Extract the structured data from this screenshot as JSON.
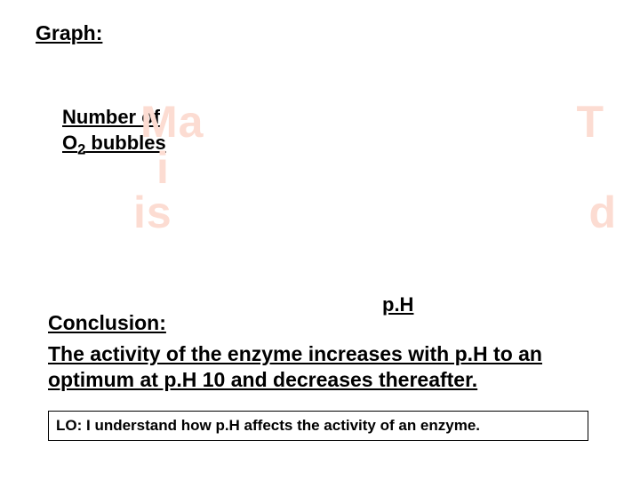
{
  "headings": {
    "graph": "Graph:",
    "conclusion": "Conclusion:"
  },
  "axes": {
    "y_line1": "Number of",
    "y_line2_pre": "O",
    "y_line2_sub": "2",
    "y_line2_post": " bubbles",
    "x": "p.H"
  },
  "washed": {
    "top_left": "Ma",
    "top_right": "T",
    "mid": "i",
    "bottom_left": "is",
    "bottom_right": "d"
  },
  "conclusion_text": "The activity of the enzyme increases with p.H to an optimum at p.H 10 and decreases thereafter.",
  "lo_text": "LO:  I understand how p.H affects the activity of an enzyme.",
  "colors": {
    "washed": "#fcdcd2",
    "text": "#000000",
    "background": "#ffffff"
  }
}
